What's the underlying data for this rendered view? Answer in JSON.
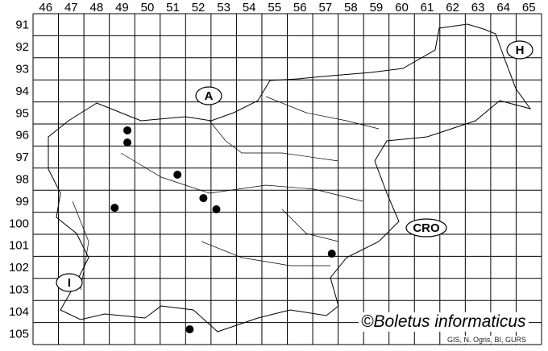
{
  "grid": {
    "columns": [
      "46",
      "47",
      "48",
      "49",
      "50",
      "51",
      "52",
      "53",
      "54",
      "55",
      "56",
      "57",
      "58",
      "59",
      "60",
      "61",
      "62",
      "63",
      "64",
      "65"
    ],
    "rows": [
      "91",
      "92",
      "93",
      "94",
      "95",
      "96",
      "97",
      "98",
      "99",
      "100",
      "101",
      "102",
      "103",
      "104",
      "105"
    ]
  },
  "country_labels": [
    {
      "text": "A"
    },
    {
      "text": "H"
    },
    {
      "text": "CRO"
    },
    {
      "text": "I"
    }
  ],
  "records": [
    {
      "col": 49.71,
      "row": 96.29
    },
    {
      "col": 49.71,
      "row": 96.84
    },
    {
      "col": 51.68,
      "row": 98.3
    },
    {
      "col": 52.7,
      "row": 99.36
    },
    {
      "col": 53.21,
      "row": 99.87
    },
    {
      "col": 49.21,
      "row": 99.8
    },
    {
      "col": 57.75,
      "row": 101.88
    },
    {
      "col": 52.16,
      "row": 105.31
    }
  ],
  "credit": "©Boletus informaticus",
  "source": "GIS, N. Ogris, BI, GURS",
  "colors": {
    "line": "#000000",
    "dot": "#000000",
    "background": "#ffffff"
  }
}
